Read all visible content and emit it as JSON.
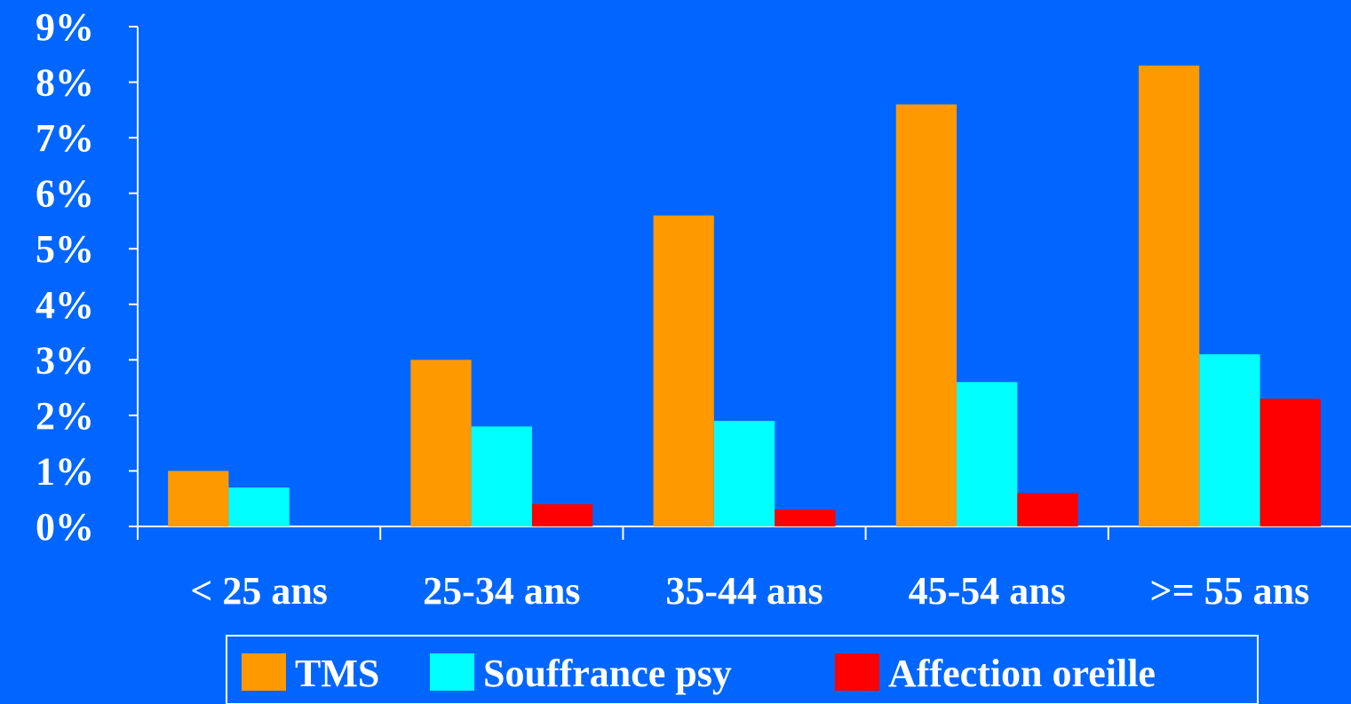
{
  "chart_data": {
    "type": "bar",
    "categories": [
      "< 25 ans",
      "25-34 ans",
      "35-44 ans",
      "45-54 ans",
      ">= 55 ans"
    ],
    "series": [
      {
        "name": "TMS",
        "color": "#FF9900",
        "values": [
          1.0,
          3.0,
          5.6,
          7.6,
          8.3
        ]
      },
      {
        "name": "Souffrance psy",
        "color": "#00FFFF",
        "values": [
          0.7,
          1.8,
          1.9,
          2.6,
          3.1
        ]
      },
      {
        "name": "Affection oreille",
        "color": "#FF0000",
        "values": [
          0.0,
          0.4,
          0.3,
          0.6,
          2.3
        ]
      }
    ],
    "y_ticks": [
      "0%",
      "1%",
      "2%",
      "3%",
      "4%",
      "5%",
      "6%",
      "7%",
      "8%",
      "9%"
    ],
    "ylim": [
      0,
      9
    ],
    "grid": false,
    "legend_position": "bottom",
    "background_color": "#0066FF",
    "text_color": "#FFFFFF",
    "title": "",
    "xlabel": "",
    "ylabel": ""
  }
}
